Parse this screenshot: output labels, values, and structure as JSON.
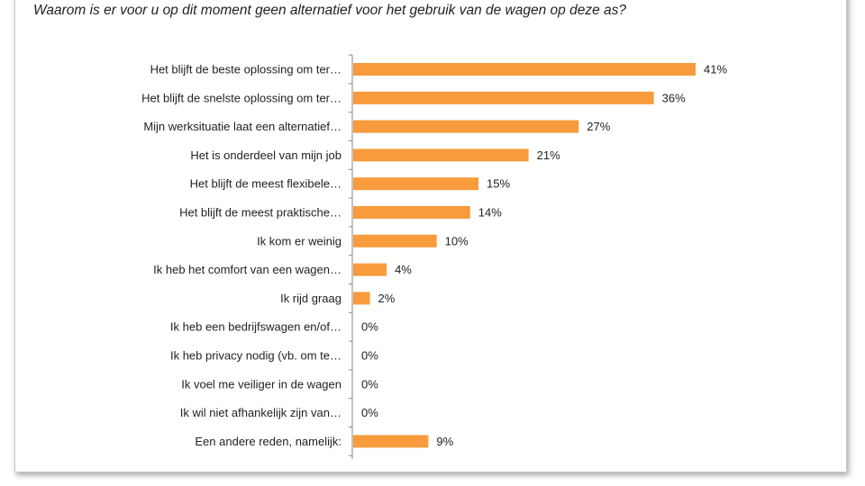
{
  "question": "Waarom is er voor u op dit moment geen alternatief voor het gebruik van de wagen op deze as?",
  "colors": {
    "bar": "#F79B3C",
    "axis": "#888888",
    "text": "#222222"
  },
  "chart_data": {
    "type": "bar",
    "orientation": "horizontal",
    "categories": [
      "Het blijft de beste oplossing om ter…",
      "Het blijft de snelste oplossing om ter…",
      "Mijn werksituatie laat een alternatief…",
      "Het is onderdeel van mijn job",
      "Het blijft de meest flexibele…",
      "Het blijft de meest praktische…",
      "Ik kom er weinig",
      "Ik heb het comfort van een wagen…",
      "Ik rijd graag",
      "Ik heb een bedrijfswagen en/of…",
      "Ik heb privacy nodig (vb. om te…",
      "Ik voel me veiliger in de wagen",
      "Ik wil niet afhankelijk zijn van…",
      "Een andere reden, namelijk:"
    ],
    "values": [
      41,
      36,
      27,
      21,
      15,
      14,
      10,
      4,
      2,
      0,
      0,
      0,
      0,
      9
    ],
    "value_labels": [
      "41%",
      "36%",
      "27%",
      "21%",
      "15%",
      "14%",
      "10%",
      "4%",
      "2%",
      "0%",
      "0%",
      "0%",
      "0%",
      "9%"
    ],
    "unit": "%",
    "grid": false,
    "legend": "none"
  }
}
